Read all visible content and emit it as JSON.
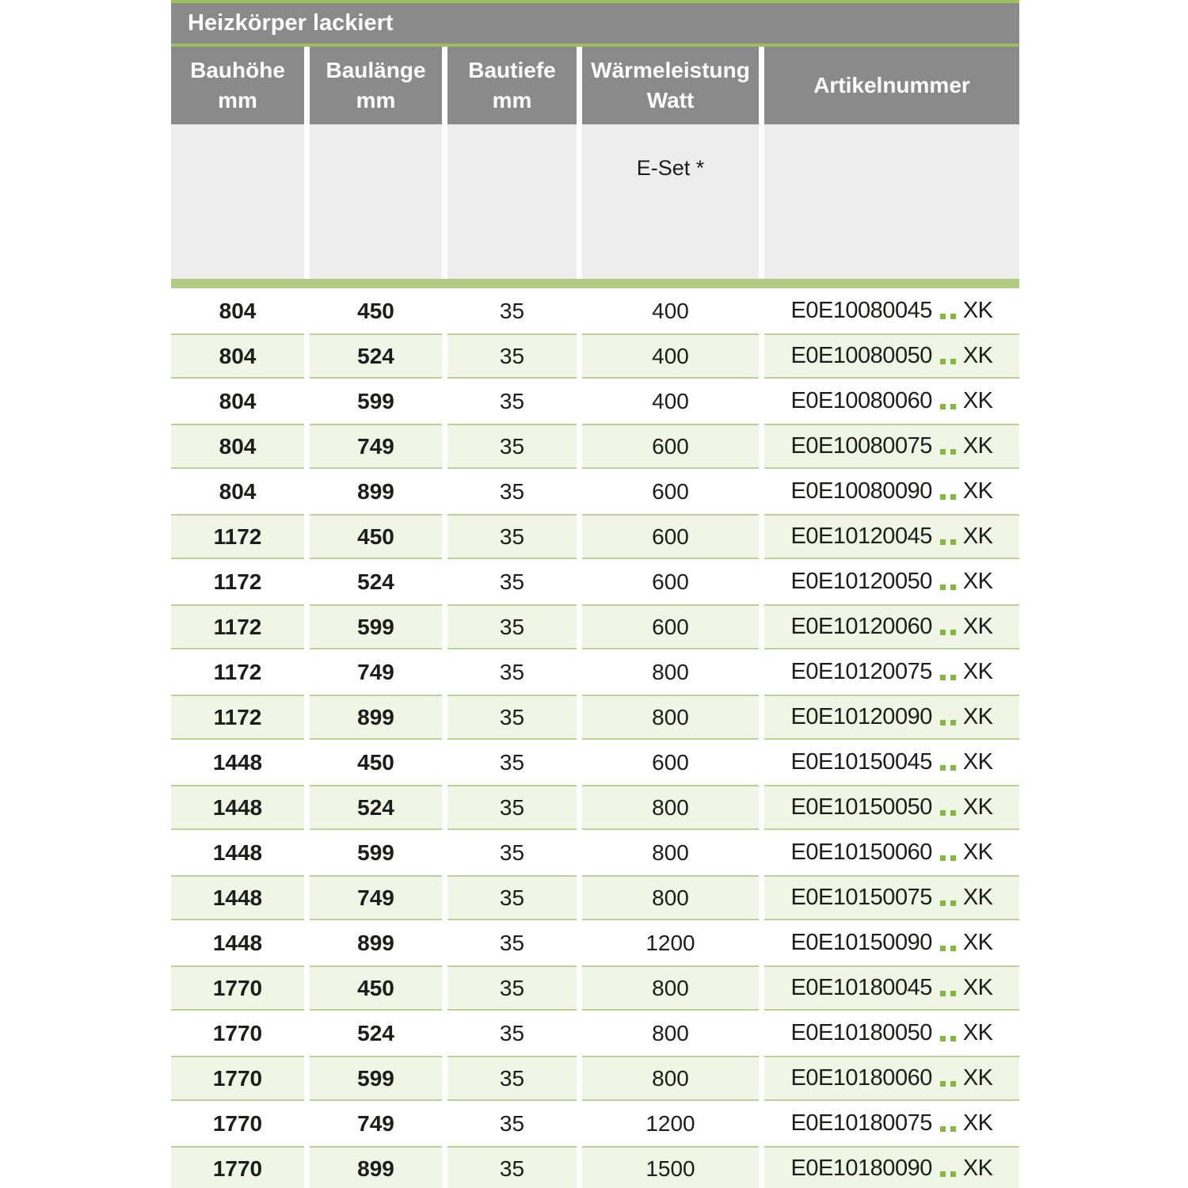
{
  "colors": {
    "header_gray": "#8a8a8a",
    "accent_green": "#9dbe5d",
    "separator_bar_green": "#b1cb83",
    "row_fill_green": "#f1f5e6",
    "row_border_green": "#bcd197",
    "dots_green": "#83b742",
    "subheader_gray": "#ededed",
    "text": "#1d1d1b"
  },
  "table": {
    "title": "Heizkörper lackiert",
    "columns": [
      {
        "line1": "Bauhöhe",
        "line2": "mm"
      },
      {
        "line1": "Baulänge",
        "line2": "mm"
      },
      {
        "line1": "Bautiefe",
        "line2": "mm"
      },
      {
        "line1": "Wärmeleistung",
        "line2": "Watt"
      },
      {
        "line1": "Artikelnummer",
        "line2": ""
      }
    ],
    "subheader": {
      "eset_label": "E-Set *"
    },
    "artikel_separator": "..",
    "rows": [
      {
        "bauhoehe_mm": "804",
        "baulaenge_mm": "450",
        "bautiefe_mm": "35",
        "watt": "400",
        "artikel_code": "E0E10080045",
        "artikel_suffix": "XK"
      },
      {
        "bauhoehe_mm": "804",
        "baulaenge_mm": "524",
        "bautiefe_mm": "35",
        "watt": "400",
        "artikel_code": "E0E10080050",
        "artikel_suffix": "XK"
      },
      {
        "bauhoehe_mm": "804",
        "baulaenge_mm": "599",
        "bautiefe_mm": "35",
        "watt": "400",
        "artikel_code": "E0E10080060",
        "artikel_suffix": "XK"
      },
      {
        "bauhoehe_mm": "804",
        "baulaenge_mm": "749",
        "bautiefe_mm": "35",
        "watt": "600",
        "artikel_code": "E0E10080075",
        "artikel_suffix": "XK"
      },
      {
        "bauhoehe_mm": "804",
        "baulaenge_mm": "899",
        "bautiefe_mm": "35",
        "watt": "600",
        "artikel_code": "E0E10080090",
        "artikel_suffix": "XK"
      },
      {
        "bauhoehe_mm": "1172",
        "baulaenge_mm": "450",
        "bautiefe_mm": "35",
        "watt": "600",
        "artikel_code": "E0E10120045",
        "artikel_suffix": "XK"
      },
      {
        "bauhoehe_mm": "1172",
        "baulaenge_mm": "524",
        "bautiefe_mm": "35",
        "watt": "600",
        "artikel_code": "E0E10120050",
        "artikel_suffix": "XK"
      },
      {
        "bauhoehe_mm": "1172",
        "baulaenge_mm": "599",
        "bautiefe_mm": "35",
        "watt": "600",
        "artikel_code": "E0E10120060",
        "artikel_suffix": "XK"
      },
      {
        "bauhoehe_mm": "1172",
        "baulaenge_mm": "749",
        "bautiefe_mm": "35",
        "watt": "800",
        "artikel_code": "E0E10120075",
        "artikel_suffix": "XK"
      },
      {
        "bauhoehe_mm": "1172",
        "baulaenge_mm": "899",
        "bautiefe_mm": "35",
        "watt": "800",
        "artikel_code": "E0E10120090",
        "artikel_suffix": "XK"
      },
      {
        "bauhoehe_mm": "1448",
        "baulaenge_mm": "450",
        "bautiefe_mm": "35",
        "watt": "600",
        "artikel_code": "E0E10150045",
        "artikel_suffix": "XK"
      },
      {
        "bauhoehe_mm": "1448",
        "baulaenge_mm": "524",
        "bautiefe_mm": "35",
        "watt": "800",
        "artikel_code": "E0E10150050",
        "artikel_suffix": "XK"
      },
      {
        "bauhoehe_mm": "1448",
        "baulaenge_mm": "599",
        "bautiefe_mm": "35",
        "watt": "800",
        "artikel_code": "E0E10150060",
        "artikel_suffix": "XK"
      },
      {
        "bauhoehe_mm": "1448",
        "baulaenge_mm": "749",
        "bautiefe_mm": "35",
        "watt": "800",
        "artikel_code": "E0E10150075",
        "artikel_suffix": "XK"
      },
      {
        "bauhoehe_mm": "1448",
        "baulaenge_mm": "899",
        "bautiefe_mm": "35",
        "watt": "1200",
        "artikel_code": "E0E10150090",
        "artikel_suffix": "XK"
      },
      {
        "bauhoehe_mm": "1770",
        "baulaenge_mm": "450",
        "bautiefe_mm": "35",
        "watt": "800",
        "artikel_code": "E0E10180045",
        "artikel_suffix": "XK"
      },
      {
        "bauhoehe_mm": "1770",
        "baulaenge_mm": "524",
        "bautiefe_mm": "35",
        "watt": "800",
        "artikel_code": "E0E10180050",
        "artikel_suffix": "XK"
      },
      {
        "bauhoehe_mm": "1770",
        "baulaenge_mm": "599",
        "bautiefe_mm": "35",
        "watt": "800",
        "artikel_code": "E0E10180060",
        "artikel_suffix": "XK"
      },
      {
        "bauhoehe_mm": "1770",
        "baulaenge_mm": "749",
        "bautiefe_mm": "35",
        "watt": "1200",
        "artikel_code": "E0E10180075",
        "artikel_suffix": "XK"
      },
      {
        "bauhoehe_mm": "1770",
        "baulaenge_mm": "899",
        "bautiefe_mm": "35",
        "watt": "1500",
        "artikel_code": "E0E10180090",
        "artikel_suffix": "XK"
      }
    ]
  }
}
